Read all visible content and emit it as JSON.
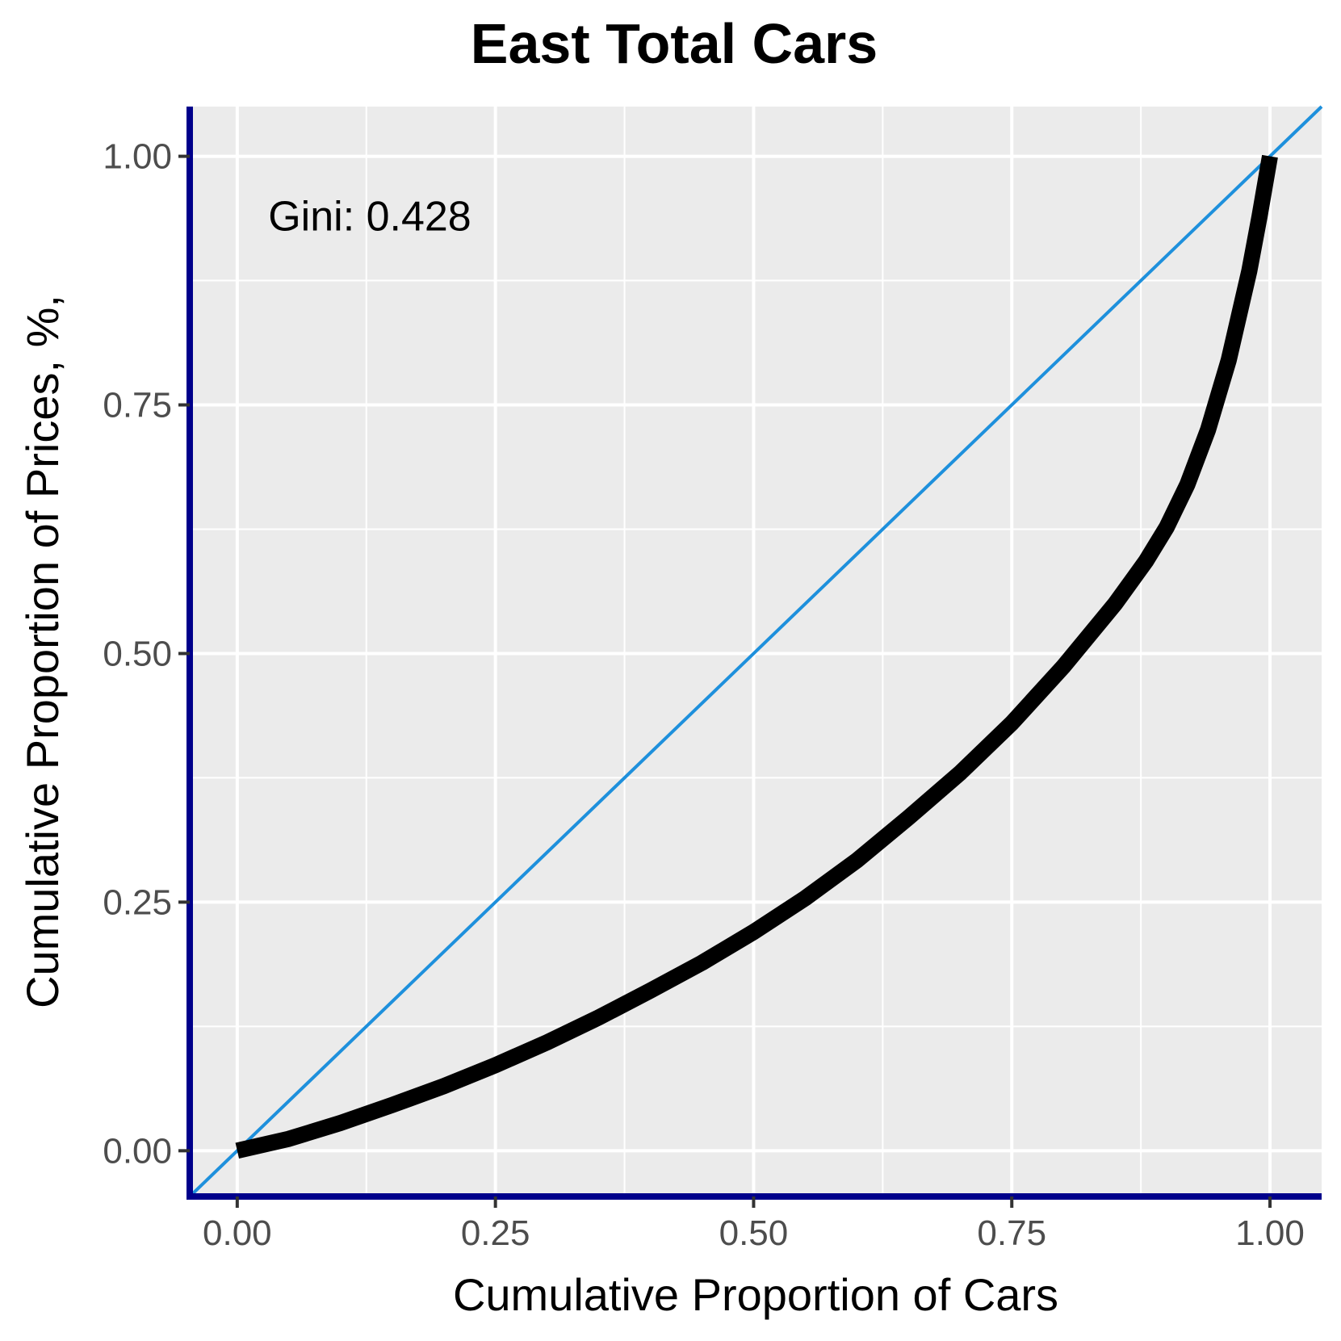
{
  "chart_data": {
    "type": "line",
    "title": "East Total Cars",
    "xlabel": "Cumulative Proportion of Cars",
    "ylabel": "Cumulative Proportion of Prices, %,",
    "xlim": [
      -0.046,
      1.05
    ],
    "ylim": [
      -0.046,
      1.05
    ],
    "x_ticks": [
      0.0,
      0.25,
      0.5,
      0.75,
      1.0
    ],
    "x_tick_labels": [
      "0.00",
      "0.25",
      "0.50",
      "0.75",
      "1.00"
    ],
    "y_ticks": [
      0.0,
      0.25,
      0.5,
      0.75,
      1.0
    ],
    "y_tick_labels": [
      "0.00",
      "0.25",
      "0.50",
      "0.75",
      "1.00"
    ],
    "grid": true,
    "annotation": "Gini: 0.428",
    "colors": {
      "panel_background": "#ebebeb",
      "grid": "#ffffff",
      "axis_lines": "#00008b",
      "equality_line": "#1e90dc",
      "lorenz_curve": "#000000"
    },
    "series": [
      {
        "type": "reference",
        "x": [
          0.0,
          1.0
        ],
        "y": [
          0.0,
          1.0
        ]
      },
      {
        "type": "lorenz",
        "x": [
          0.0,
          0.05,
          0.1,
          0.15,
          0.2,
          0.25,
          0.3,
          0.35,
          0.4,
          0.45,
          0.5,
          0.55,
          0.6,
          0.65,
          0.7,
          0.75,
          0.8,
          0.85,
          0.88,
          0.9,
          0.92,
          0.94,
          0.96,
          0.98,
          0.99,
          1.0
        ],
        "y": [
          0.0,
          0.012,
          0.028,
          0.046,
          0.065,
          0.086,
          0.109,
          0.134,
          0.161,
          0.189,
          0.22,
          0.254,
          0.292,
          0.335,
          0.38,
          0.43,
          0.487,
          0.55,
          0.593,
          0.627,
          0.67,
          0.725,
          0.795,
          0.885,
          0.94,
          1.0
        ]
      }
    ]
  }
}
